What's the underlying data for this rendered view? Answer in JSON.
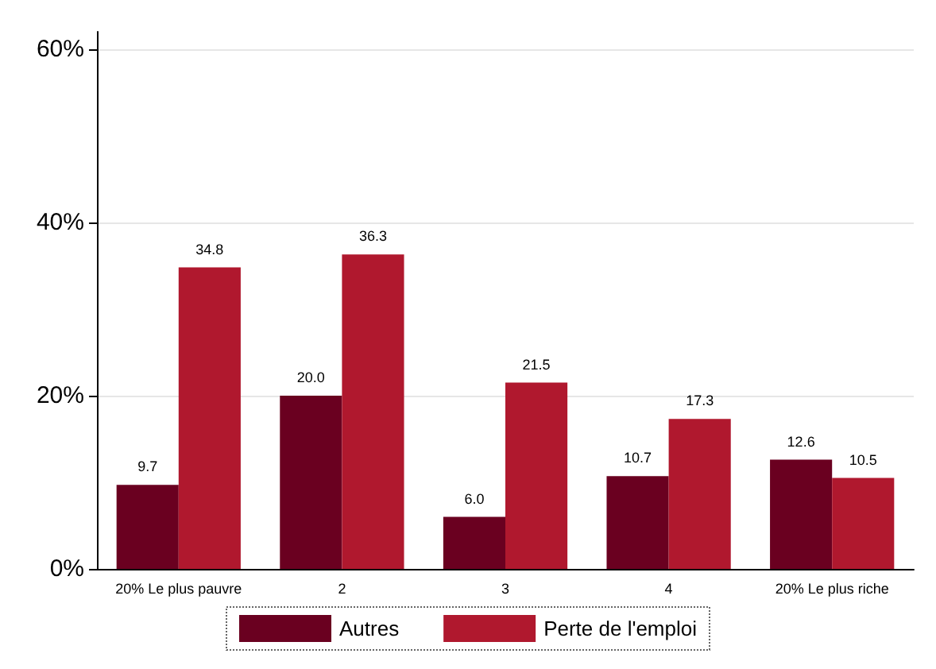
{
  "chart_data": {
    "type": "bar",
    "categories": [
      "20% Le plus pauvre",
      "2",
      "3",
      "4",
      "20% Le plus riche"
    ],
    "series": [
      {
        "name": "Autres",
        "color": "#6a0020",
        "values": [
          9.7,
          20,
          6,
          10.7,
          12.6
        ],
        "value_labels": [
          "9.7",
          "20.0",
          "6.0",
          "10.7",
          "12.6"
        ]
      },
      {
        "name": "Perte de l'emploi",
        "color": "#b0182e",
        "values": [
          34.8,
          36.3,
          21.5,
          17.3,
          10.5
        ],
        "value_labels": [
          "34.8",
          "36.3",
          "21.5",
          "17.3",
          "10.5"
        ]
      }
    ],
    "ylim": [
      0,
      62
    ],
    "yticks": [
      {
        "value": 0,
        "label": "0%"
      },
      {
        "value": 20,
        "label": "20%"
      },
      {
        "value": 40,
        "label": "40%"
      },
      {
        "value": 60,
        "label": "60%"
      }
    ],
    "grid": "y",
    "legend": "bottom"
  }
}
